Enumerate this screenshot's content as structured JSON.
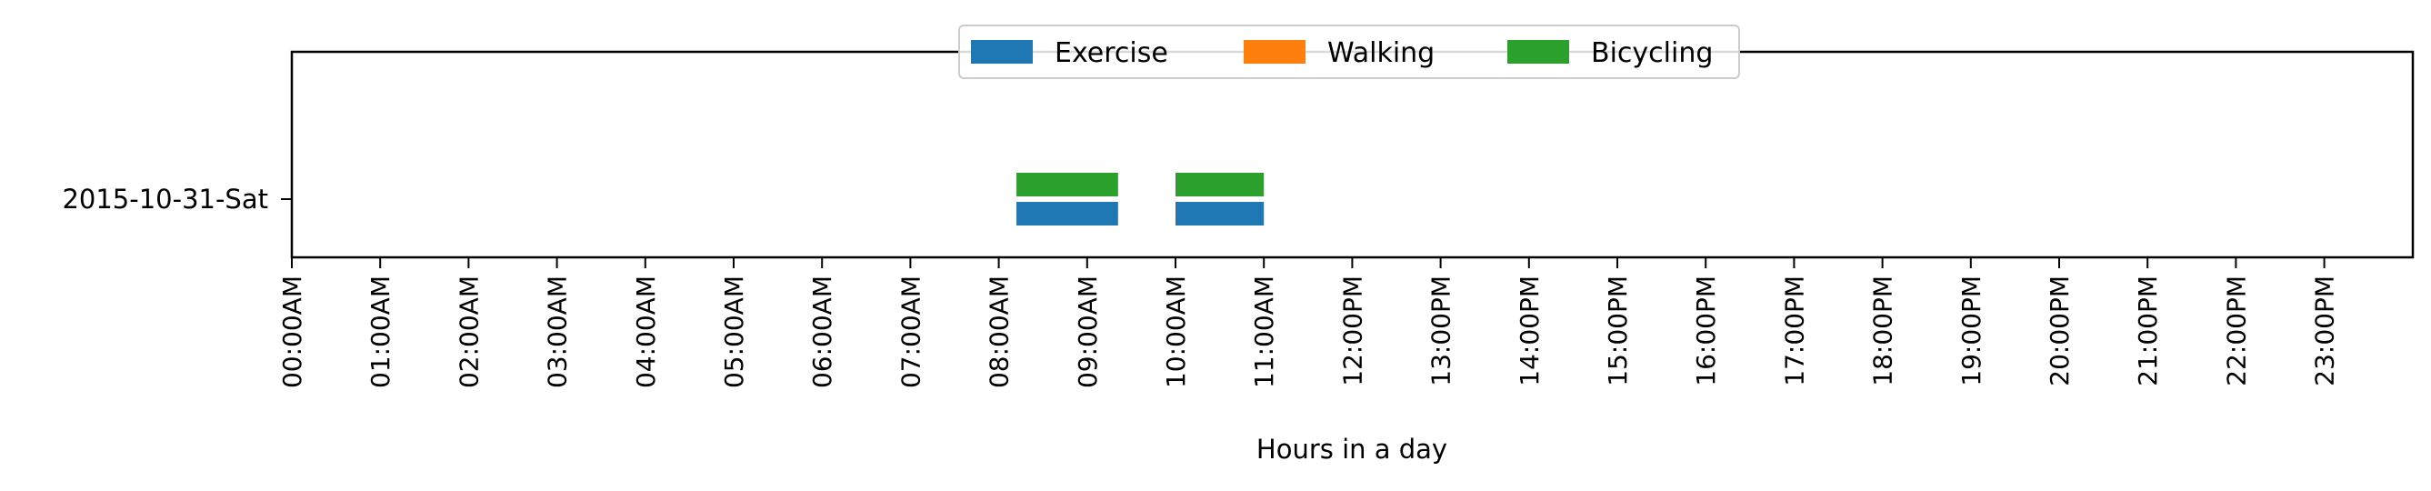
{
  "chart_data": {
    "type": "bar",
    "orientation": "horizontal",
    "y_categories": [
      "2015-10-31-Sat"
    ],
    "xlabel": "Hours in a day",
    "xlim": [
      0,
      24
    ],
    "x_ticks": [
      "00:00AM",
      "01:00AM",
      "02:00AM",
      "03:00AM",
      "04:00AM",
      "05:00AM",
      "06:00AM",
      "07:00AM",
      "08:00AM",
      "09:00AM",
      "10:00AM",
      "11:00AM",
      "12:00PM",
      "13:00PM",
      "14:00PM",
      "15:00PM",
      "16:00PM",
      "17:00PM",
      "18:00PM",
      "19:00PM",
      "20:00PM",
      "21:00PM",
      "22:00PM",
      "23:00PM"
    ],
    "legend_position": "top-center",
    "grid": false,
    "series": [
      {
        "name": "Exercise",
        "color": "#1f77b4",
        "intervals": [
          {
            "start": 8.2,
            "end": 9.35
          },
          {
            "start": 10.0,
            "end": 11.0
          }
        ]
      },
      {
        "name": "Walking",
        "color": "#ff7f0e",
        "intervals": []
      },
      {
        "name": "Bicycling",
        "color": "#2ca02c",
        "intervals": [
          {
            "start": 8.2,
            "end": 9.35
          },
          {
            "start": 10.0,
            "end": 11.0
          }
        ]
      }
    ]
  }
}
